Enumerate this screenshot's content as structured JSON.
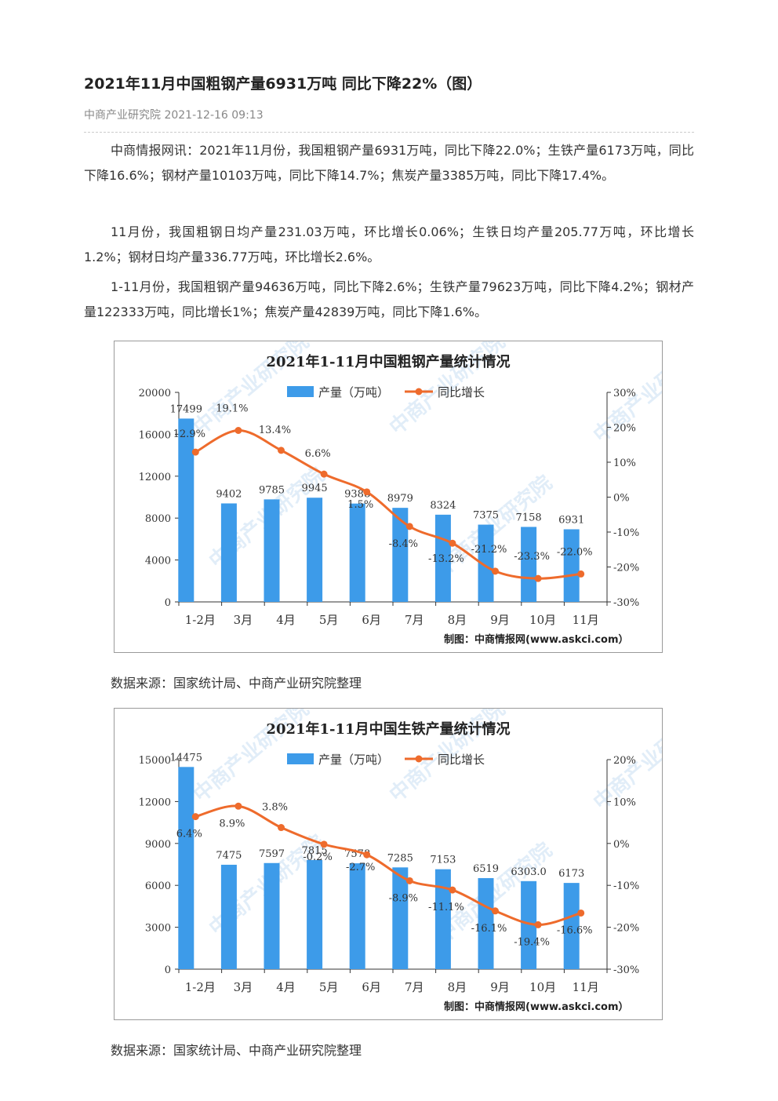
{
  "article": {
    "title": "2021年11月中国粗钢产量6931万吨 同比下降22%（图）",
    "source": "中商产业研究院",
    "datetime": "2021-12-16 09:13",
    "paragraphs": [
      "中商情报网讯：2021年11月份，我国粗钢产量6931万吨，同比下降22.0%；生铁产量6173万吨，同比下降16.6%；钢材产量10103万吨，同比下降14.7%；焦炭产量3385万吨，同比下降17.4%。",
      "11月份，我国粗钢日均产量231.03万吨，环比增长0.06%；生铁日均产量205.77万吨，环比增长1.2%；钢材日均产量336.77万吨，环比增长2.6%。",
      "1-11月份，我国粗钢产量94636万吨，同比下降2.6%；生铁产量79623万吨，同比下降4.2%；钢材产量122333万吨，同比增长1%；焦炭产量42839万吨，同比下降1.6%。"
    ],
    "figure_source_1": "数据来源：国家统计局、中商产业研究院整理",
    "figure_source_2": "数据来源：国家统计局、中商产业研究院整理"
  },
  "colors": {
    "bar": "#3d9be9",
    "line": "#ee6b2c",
    "axis": "#333333",
    "text": "#333333"
  },
  "chart_data": [
    {
      "type": "bar",
      "title": "2021年1-11月中国粗钢产量统计情况",
      "categories": [
        "1-2月",
        "3月",
        "4月",
        "5月",
        "6月",
        "7月",
        "8月",
        "9月",
        "10月",
        "11月"
      ],
      "series": [
        {
          "name": "产量（万吨）",
          "type": "bar",
          "axis": "left",
          "values": [
            17499,
            9402,
            9785,
            9945,
            9388,
            8979,
            8324,
            7375,
            7158,
            6931
          ],
          "labels": [
            "17499",
            "9402",
            "9785",
            "9945",
            "9388",
            "8979",
            "8324",
            "7375",
            "7158",
            "6931"
          ]
        },
        {
          "name": "同比增长",
          "type": "line",
          "axis": "right",
          "values": [
            12.9,
            19.1,
            13.4,
            6.6,
            1.5,
            -8.4,
            -13.2,
            -21.2,
            -23.3,
            -22.0
          ],
          "labels": [
            "12.9%",
            "19.1%",
            "13.4%",
            "6.6%",
            "1.5%",
            "-8.4%",
            "-13.2%",
            "-21.2%",
            "-23.3%",
            "-22.0%"
          ]
        }
      ],
      "y_left": {
        "min": 0,
        "max": 20000,
        "ticks": [
          "0",
          "4000",
          "8000",
          "12000",
          "16000",
          "20000"
        ]
      },
      "y_right": {
        "min": -30,
        "max": 30,
        "ticks": [
          "-30%",
          "-20%",
          "-10%",
          "0%",
          "10%",
          "20%",
          "30%"
        ]
      },
      "legend_position": "top",
      "grid": false,
      "credit": "制图：中商情报网(www.askci.com）",
      "watermark": "中商产业研究院"
    },
    {
      "type": "bar",
      "title": "2021年1-11月中国生铁产量统计情况",
      "categories": [
        "1-2月",
        "3月",
        "4月",
        "5月",
        "6月",
        "7月",
        "8月",
        "9月",
        "10月",
        "11月"
      ],
      "series": [
        {
          "name": "产量（万吨）",
          "type": "bar",
          "axis": "left",
          "values": [
            14475,
            7475,
            7597,
            7815,
            7578,
            7285,
            7153,
            6519,
            6303,
            6173
          ],
          "labels": [
            "14475",
            "7475",
            "7597",
            "7815",
            "7578",
            "7285",
            "7153",
            "6519",
            "6303.0",
            "6173"
          ]
        },
        {
          "name": "同比增长",
          "type": "line",
          "axis": "right",
          "values": [
            6.4,
            8.9,
            3.8,
            -0.2,
            -2.7,
            -8.9,
            -11.1,
            -16.1,
            -19.4,
            -16.6
          ],
          "labels": [
            "6.4%",
            "8.9%",
            "3.8%",
            "-0.2%",
            "-2.7%",
            "-8.9%",
            "-11.1%",
            "-16.1%",
            "-19.4%",
            "-16.6%"
          ]
        }
      ],
      "y_left": {
        "min": 0,
        "max": 15000,
        "ticks": [
          "0",
          "3000",
          "6000",
          "9000",
          "12000",
          "15000"
        ]
      },
      "y_right": {
        "min": -30,
        "max": 20,
        "ticks": [
          "-30%",
          "-20%",
          "-10%",
          "0%",
          "10%",
          "20%"
        ]
      },
      "legend_position": "top",
      "grid": false,
      "credit": "制图：中商情报网(www.askci.com）",
      "watermark": "中商产业研究院"
    }
  ]
}
